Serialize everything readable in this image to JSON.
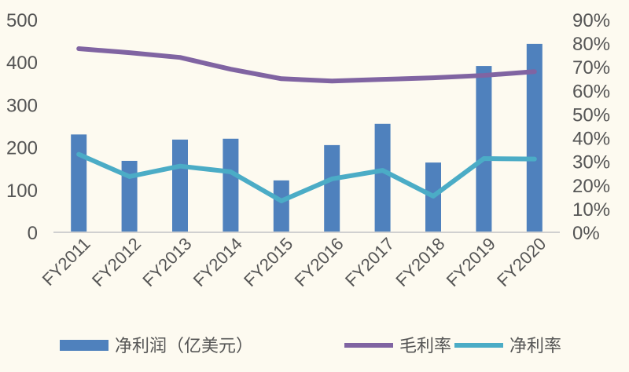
{
  "chart_data": {
    "type": "bar+line",
    "categories": [
      "FY2011",
      "FY2012",
      "FY2013",
      "FY2014",
      "FY2015",
      "FY2016",
      "FY2017",
      "FY2018",
      "FY2019",
      "FY2020"
    ],
    "series": [
      {
        "name": "净利润（亿美元）",
        "type": "bar",
        "axis": "left",
        "color": "#4f81bd",
        "values": [
          230,
          168,
          218,
          220,
          122,
          205,
          255,
          164,
          391,
          443
        ]
      },
      {
        "name": "毛利率",
        "type": "line",
        "axis": "right",
        "color": "#8064a2",
        "values": [
          77.7,
          76,
          74,
          69,
          65,
          64,
          64.7,
          65.4,
          66.4,
          68
        ]
      },
      {
        "name": "净利率",
        "type": "line",
        "axis": "right",
        "color": "#4bacc6",
        "values": [
          33,
          23.6,
          28,
          25.6,
          13.3,
          22.6,
          26.2,
          15.3,
          31.2,
          31
        ]
      }
    ],
    "ylim_left": [
      0,
      500
    ],
    "yticks_left": [
      "0",
      "100",
      "200",
      "300",
      "400",
      "500"
    ],
    "ylim_right": [
      0,
      90
    ],
    "yticks_right": [
      "0%",
      "10%",
      "20%",
      "30%",
      "40%",
      "50%",
      "60%",
      "70%",
      "80%",
      "90%"
    ],
    "grid": false,
    "legend_position": "bottom"
  }
}
